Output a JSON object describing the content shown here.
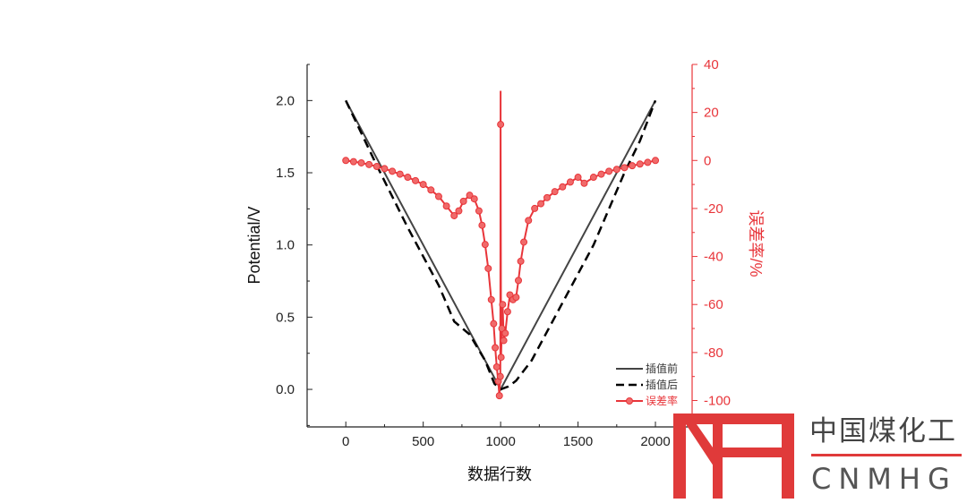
{
  "chart_data": {
    "type": "line",
    "xlabel": "数据行数",
    "ylabel": "Potential/V",
    "y2label": "误差率/%",
    "xlim": [
      -250,
      2237
    ],
    "ylim": [
      -0.26,
      2.25
    ],
    "y2lim": [
      -111,
      40
    ],
    "xticks": [
      0,
      500,
      1000,
      1500,
      2000
    ],
    "yticks": [
      0.0,
      0.5,
      1.0,
      1.5,
      2.0
    ],
    "y2ticks": [
      40,
      20,
      0,
      -20,
      -40,
      -60,
      -80,
      -100
    ],
    "grid": false,
    "legend_position": "bottom-right",
    "series": [
      {
        "name": "插值前",
        "axis": "left",
        "style": "solid",
        "color": "#444444",
        "x": [
          0,
          1000,
          2000
        ],
        "y": [
          2.0,
          0.0,
          2.0
        ]
      },
      {
        "name": "插值后",
        "axis": "left",
        "style": "dashed",
        "color": "#000000",
        "x": [
          0,
          200,
          400,
          600,
          700,
          800,
          900,
          960,
          1000,
          1050,
          1100,
          1200,
          1400,
          1600,
          1800,
          1900,
          2000
        ],
        "y": [
          2.0,
          1.55,
          1.12,
          0.72,
          0.47,
          0.38,
          0.2,
          0.04,
          0.0,
          0.02,
          0.06,
          0.2,
          0.6,
          1.0,
          1.5,
          1.72,
          2.0
        ]
      },
      {
        "name": "误差率",
        "axis": "right",
        "style": "line+marker",
        "color": "#e8353a",
        "x": [
          0,
          50,
          100,
          150,
          200,
          250,
          300,
          350,
          400,
          450,
          500,
          550,
          600,
          650,
          700,
          730,
          760,
          800,
          830,
          860,
          880,
          900,
          920,
          940,
          955,
          965,
          975,
          985,
          992,
          998,
          1000,
          1000,
          1003,
          1008,
          1013,
          1020,
          1030,
          1045,
          1060,
          1080,
          1100,
          1115,
          1130,
          1150,
          1180,
          1220,
          1260,
          1300,
          1350,
          1400,
          1450,
          1500,
          1540,
          1600,
          1650,
          1700,
          1750,
          1800,
          1850,
          1900,
          1950,
          2000
        ],
        "y": [
          0,
          -0.5,
          -1,
          -1.7,
          -2.5,
          -3.4,
          -4.5,
          -5.7,
          -7,
          -8.4,
          -10,
          -12.3,
          -15,
          -19,
          -23,
          -21,
          -17,
          -14.5,
          -16,
          -21,
          -27,
          -35,
          -45,
          -58,
          -68,
          -78,
          -86,
          -92,
          -98,
          -90,
          29,
          15,
          -82,
          -70,
          -60,
          -75,
          -72,
          -63,
          -56,
          -58,
          -57,
          -50,
          -42,
          -34,
          -25,
          -20,
          -18,
          -15.5,
          -13,
          -11,
          -9,
          -7,
          -9.5,
          -7,
          -5.7,
          -4.5,
          -3.7,
          -3,
          -2.2,
          -1.5,
          -0.8,
          0
        ]
      }
    ]
  },
  "logo": {
    "mark": "MH",
    "name_cn": "中国煤化工",
    "name_en": "CNMHG",
    "color": "#e03a3a"
  }
}
